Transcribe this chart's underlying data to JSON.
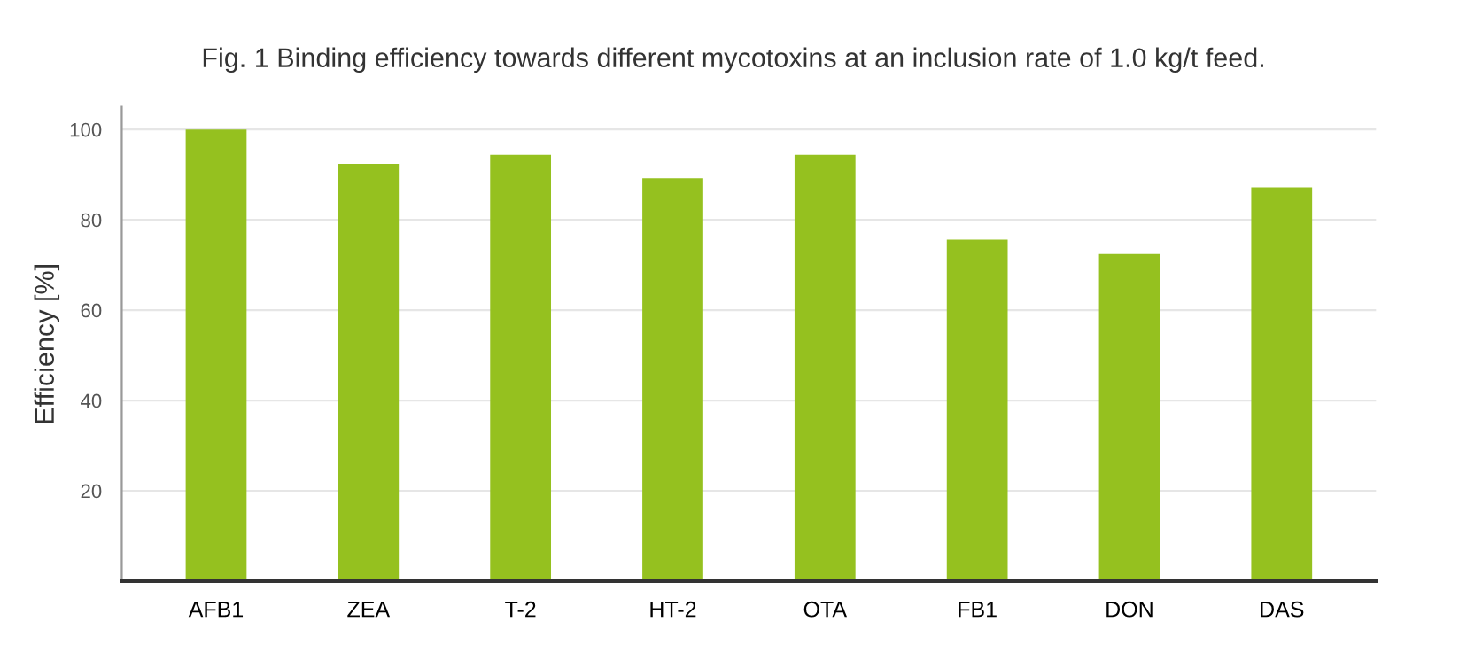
{
  "chart_data": {
    "type": "bar",
    "title": "Fig. 1 Binding efficiency towards different mycotoxins at an inclusion rate of 1.0 kg/t feed.",
    "ylabel": "Efficiency [%]",
    "categories": [
      "AFB1",
      "ZEA",
      "T-2",
      "HT-2",
      "OTA",
      "FB1",
      "DON",
      "DAS"
    ],
    "values": [
      100,
      92.4,
      94.4,
      89.2,
      94.4,
      75.6,
      72.4,
      87.2
    ],
    "color": "#95c11f",
    "ylim": [
      0,
      105
    ],
    "yticks": [
      20,
      40,
      60,
      80,
      100
    ],
    "grid": "y"
  }
}
